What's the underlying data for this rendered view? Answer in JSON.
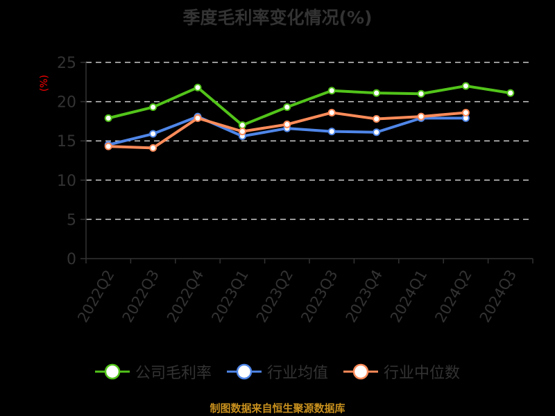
{
  "title": "季度毛利率变化情况(%)",
  "unit_label": "(%)",
  "source": "制图数据来自恒生聚源数据库",
  "colors": {
    "company": "#52c41a",
    "industry_avg": "#4f86e8",
    "industry_median": "#ff8c5a",
    "grid": "#cccccc",
    "axis": "#333333",
    "source": "#c8901e",
    "unit": "#ff0000"
  },
  "legend": [
    {
      "label": "公司毛利率",
      "color": "#52c41a"
    },
    {
      "label": "行业均值",
      "color": "#4f86e8"
    },
    {
      "label": "行业中位数",
      "color": "#ff8c5a"
    }
  ],
  "chart_data": {
    "type": "line",
    "title": "季度毛利率变化情况(%)",
    "xlabel": "",
    "ylabel": "(%)",
    "ylim": [
      0,
      25
    ],
    "yticks": [
      0,
      5,
      10,
      15,
      20,
      25
    ],
    "grid": true,
    "legend_position": "bottom",
    "categories": [
      "2022Q2",
      "2022Q3",
      "2022Q4",
      "2023Q1",
      "2023Q2",
      "2023Q3",
      "2023Q4",
      "2024Q1",
      "2024Q2",
      "2024Q3"
    ],
    "series": [
      {
        "name": "公司毛利率",
        "values": [
          17.9,
          19.3,
          21.8,
          17.0,
          19.3,
          21.4,
          21.1,
          21.0,
          22.0,
          21.1
        ]
      },
      {
        "name": "行业均值",
        "values": [
          14.5,
          15.9,
          18.1,
          15.6,
          16.6,
          16.2,
          16.1,
          17.9,
          17.9,
          null
        ]
      },
      {
        "name": "行业中位数",
        "values": [
          14.3,
          14.1,
          17.9,
          16.2,
          17.1,
          18.6,
          17.8,
          18.1,
          18.6,
          null
        ]
      }
    ]
  }
}
